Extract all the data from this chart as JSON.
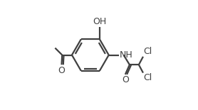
{
  "bg_color": "#ffffff",
  "line_color": "#404040",
  "line_width": 1.6,
  "text_color": "#404040",
  "font_size": 9.0,
  "oh_label": "OH",
  "nh_label": "NH",
  "o_label1": "O",
  "o_label2": "O",
  "cl_label1": "Cl",
  "cl_label2": "Cl"
}
